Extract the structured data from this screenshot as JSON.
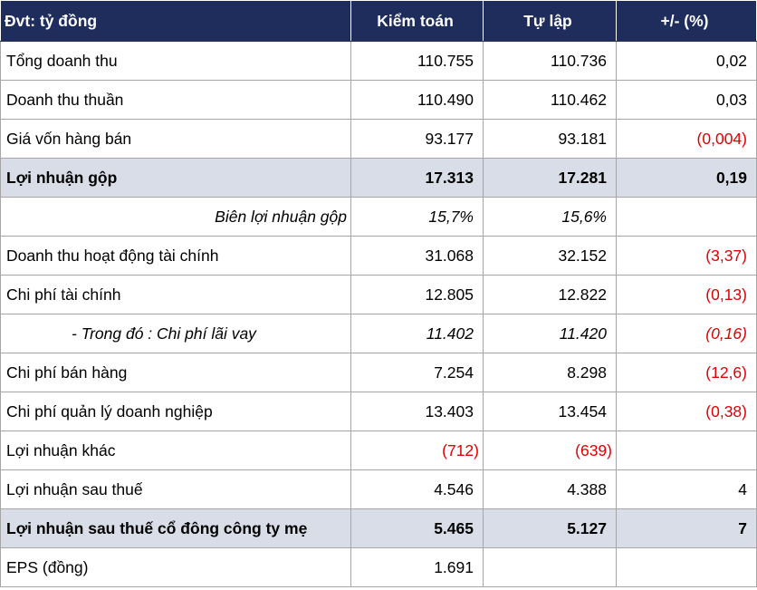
{
  "table": {
    "header": [
      "Đvt: tỷ đồng",
      "Kiểm toán",
      "Tự lập",
      "+/- (%)"
    ],
    "rows": [
      [
        "Tổng doanh thu",
        "110.755",
        "110.736",
        "0,02"
      ],
      [
        "Doanh thu thuần",
        "110.490",
        "110.462",
        "0,03"
      ],
      [
        "Giá vốn hàng bán",
        "93.177",
        "93.181",
        "(0,004)"
      ],
      [
        "Lợi nhuận gộp",
        "17.313",
        "17.281",
        "0,19"
      ],
      [
        "Biên lợi nhuận gộp",
        "15,7%",
        "15,6%",
        null
      ],
      [
        "Doanh thu hoạt động tài chính",
        "31.068",
        "32.152",
        "(3,37)"
      ],
      [
        "Chi phí tài chính",
        "12.805",
        "12.822",
        "(0,13)"
      ],
      [
        "- Trong đó : Chi phí lãi vay",
        "11.402",
        "11.420",
        "(0,16)"
      ],
      [
        "Chi phí bán hàng",
        "7.254",
        "8.298",
        "(12,6)"
      ],
      [
        "Chi phí quản lý doanh nghiệp",
        "13.403",
        "13.454",
        "(0,38)"
      ],
      [
        "Lợi nhuận khác",
        "(712)",
        "(639)",
        null
      ],
      [
        "Lợi nhuận sau thuế",
        "4.546",
        "4.388",
        "4"
      ],
      [
        "Lợi nhuận sau thuế cổ đông công ty mẹ",
        "5.465",
        "5.127",
        "7"
      ],
      [
        "EPS (đồng)",
        "1.691",
        null,
        null
      ]
    ]
  }
}
